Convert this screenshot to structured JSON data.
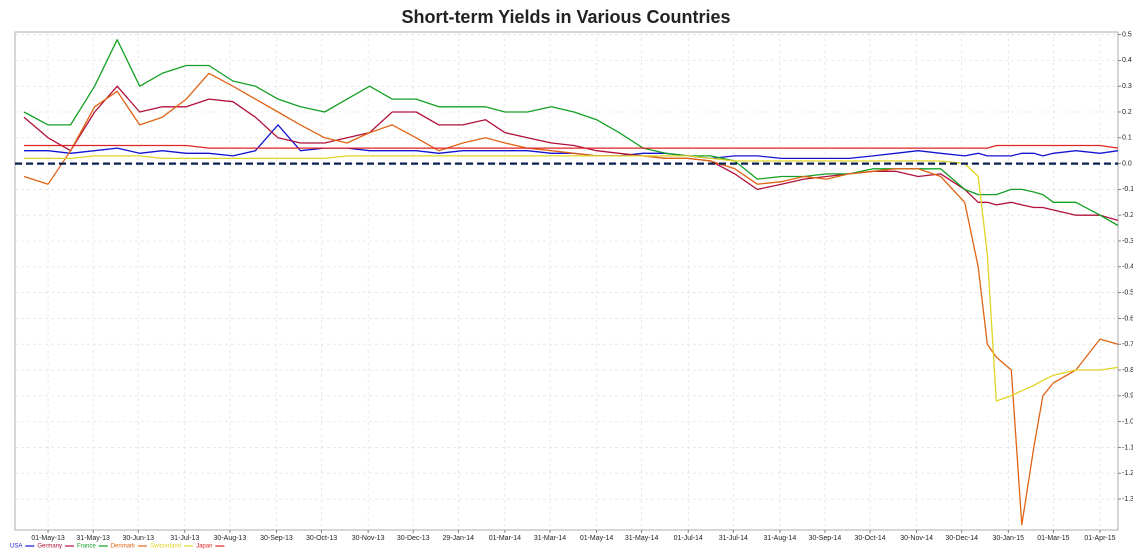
{
  "chart_data": {
    "type": "line",
    "title": "Short-term Yields in Various Countries",
    "x": [
      "2013-04-15",
      "2013-05-01",
      "2013-05-16",
      "2013-06-01",
      "2013-06-16",
      "2013-07-01",
      "2013-07-16",
      "2013-08-01",
      "2013-08-16",
      "2013-09-01",
      "2013-09-16",
      "2013-10-01",
      "2013-10-16",
      "2013-11-01",
      "2013-11-16",
      "2013-12-01",
      "2013-12-16",
      "2014-01-01",
      "2014-01-16",
      "2014-02-01",
      "2014-02-16",
      "2014-03-01",
      "2014-03-16",
      "2014-04-01",
      "2014-04-16",
      "2014-05-01",
      "2014-05-16",
      "2014-06-01",
      "2014-06-16",
      "2014-07-01",
      "2014-07-16",
      "2014-08-01",
      "2014-08-16",
      "2014-09-01",
      "2014-09-16",
      "2014-10-01",
      "2014-10-16",
      "2014-11-01",
      "2014-11-16",
      "2014-12-01",
      "2014-12-16",
      "2015-01-01",
      "2015-01-10",
      "2015-01-16",
      "2015-01-22",
      "2015-02-01",
      "2015-02-08",
      "2015-02-16",
      "2015-02-22",
      "2015-03-01",
      "2015-03-16",
      "2015-04-01",
      "2015-04-13"
    ],
    "xlim": [
      "2013-04-09",
      "2015-04-13"
    ],
    "xticks": [
      {
        "value": "2013-05-01",
        "label": "01-May-13"
      },
      {
        "value": "2013-05-31",
        "label": "31-May-13"
      },
      {
        "value": "2013-06-30",
        "label": "30-Jun-13"
      },
      {
        "value": "2013-07-31",
        "label": "31-Jul-13"
      },
      {
        "value": "2013-08-30",
        "label": "30-Aug-13"
      },
      {
        "value": "2013-09-30",
        "label": "30-Sep-13"
      },
      {
        "value": "2013-10-30",
        "label": "30-Oct-13"
      },
      {
        "value": "2013-11-30",
        "label": "30-Nov-13"
      },
      {
        "value": "2013-12-30",
        "label": "30-Dec-13"
      },
      {
        "value": "2014-01-29",
        "label": "29-Jan-14"
      },
      {
        "value": "2014-03-01",
        "label": "01-Mar-14"
      },
      {
        "value": "2014-03-31",
        "label": "31-Mar-14"
      },
      {
        "value": "2014-05-01",
        "label": "01-May-14"
      },
      {
        "value": "2014-05-31",
        "label": "31-May-14"
      },
      {
        "value": "2014-07-01",
        "label": "01-Jul-14"
      },
      {
        "value": "2014-07-31",
        "label": "31-Jul-14"
      },
      {
        "value": "2014-08-31",
        "label": "31-Aug-14"
      },
      {
        "value": "2014-09-30",
        "label": "30-Sep-14"
      },
      {
        "value": "2014-10-30",
        "label": "30-Oct-14"
      },
      {
        "value": "2014-11-30",
        "label": "30-Nov-14"
      },
      {
        "value": "2014-12-30",
        "label": "30-Dec-14"
      },
      {
        "value": "2015-01-30",
        "label": "30-Jan-15"
      },
      {
        "value": "2015-03-01",
        "label": "01-Mar-15"
      },
      {
        "value": "2015-04-01",
        "label": "01-Apr-15"
      }
    ],
    "ylim": [
      -1.42,
      0.51
    ],
    "yticks": [
      0.5,
      0.4,
      0.3,
      0.2,
      0.1,
      {
        "value": 0,
        "label": "0.0"
      },
      -0.1,
      -0.2,
      -0.3,
      -0.4,
      -0.5,
      -0.6,
      -0.7,
      -0.8,
      -0.9,
      {
        "value": -1,
        "label": "-1.0"
      },
      -1.1,
      -1.2,
      -1.3
    ],
    "grid": true,
    "reference_line": {
      "value": 0,
      "color": "#0a2050"
    },
    "series": [
      {
        "name": "USA",
        "color": "#1414d2",
        "values": [
          0.05,
          0.05,
          0.04,
          0.05,
          0.06,
          0.04,
          0.05,
          0.04,
          0.04,
          0.03,
          0.05,
          0.15,
          0.05,
          0.06,
          0.06,
          0.05,
          0.05,
          0.05,
          0.04,
          0.05,
          0.05,
          0.05,
          0.05,
          0.04,
          0.04,
          0.03,
          0.03,
          0.04,
          0.04,
          0.03,
          0.02,
          0.03,
          0.03,
          0.02,
          0.02,
          0.02,
          0.02,
          0.03,
          0.04,
          0.05,
          0.04,
          0.03,
          0.04,
          0.03,
          0.03,
          0.03,
          0.04,
          0.04,
          0.03,
          0.04,
          0.05,
          0.04,
          0.05
        ]
      },
      {
        "name": "Germany",
        "color": "#b0103a",
        "values": [
          0.18,
          0.1,
          0.05,
          0.2,
          0.3,
          0.2,
          0.22,
          0.22,
          0.25,
          0.24,
          0.18,
          0.1,
          0.08,
          0.08,
          0.1,
          0.12,
          0.2,
          0.2,
          0.15,
          0.15,
          0.17,
          0.12,
          0.1,
          0.08,
          0.07,
          0.05,
          0.04,
          0.03,
          0.02,
          0.02,
          0.01,
          -0.04,
          -0.1,
          -0.08,
          -0.06,
          -0.05,
          -0.04,
          -0.03,
          -0.03,
          -0.05,
          -0.04,
          -0.1,
          -0.15,
          -0.15,
          -0.16,
          -0.15,
          -0.16,
          -0.17,
          -0.17,
          -0.18,
          -0.2,
          -0.2,
          -0.22
        ]
      },
      {
        "name": "France",
        "color": "#14a024",
        "values": [
          0.2,
          0.15,
          0.15,
          0.3,
          0.48,
          0.3,
          0.35,
          0.38,
          0.38,
          0.32,
          0.3,
          0.25,
          0.22,
          0.2,
          0.25,
          0.3,
          0.25,
          0.25,
          0.22,
          0.22,
          0.22,
          0.2,
          0.2,
          0.22,
          0.2,
          0.17,
          0.12,
          0.06,
          0.04,
          0.03,
          0.03,
          0.01,
          -0.06,
          -0.05,
          -0.05,
          -0.04,
          -0.04,
          -0.02,
          -0.02,
          -0.02,
          -0.02,
          -0.1,
          -0.12,
          -0.12,
          -0.12,
          -0.1,
          -0.1,
          -0.11,
          -0.12,
          -0.15,
          -0.15,
          -0.2,
          -0.24
        ]
      },
      {
        "name": "Denmark",
        "color": "#e06414",
        "values": [
          -0.05,
          -0.08,
          0.05,
          0.22,
          0.28,
          0.15,
          0.18,
          0.25,
          0.35,
          0.3,
          0.25,
          0.2,
          0.15,
          0.1,
          0.08,
          0.12,
          0.15,
          0.1,
          0.05,
          0.08,
          0.1,
          0.08,
          0.06,
          0.05,
          0.04,
          0.03,
          0.03,
          0.03,
          0.02,
          0.02,
          0.01,
          -0.02,
          -0.08,
          -0.07,
          -0.05,
          -0.06,
          -0.04,
          -0.03,
          -0.02,
          -0.02,
          -0.05,
          -0.15,
          -0.4,
          -0.7,
          -0.75,
          -0.8,
          -1.4,
          -1.1,
          -0.9,
          -0.85,
          -0.8,
          -0.68,
          -0.7
        ]
      },
      {
        "name": "Switzerland",
        "color": "#e0d424",
        "values": [
          0.02,
          0.02,
          0.02,
          0.03,
          0.03,
          0.03,
          0.02,
          0.02,
          0.02,
          0.02,
          0.02,
          0.02,
          0.02,
          0.02,
          0.03,
          0.03,
          0.03,
          0.03,
          0.03,
          0.03,
          0.03,
          0.03,
          0.03,
          0.03,
          0.03,
          0.03,
          0.03,
          0.03,
          0.03,
          0.03,
          0.02,
          0.01,
          0.01,
          0.01,
          0.01,
          0.01,
          0.01,
          0.01,
          0.01,
          0.01,
          0.01,
          0,
          -0.05,
          -0.35,
          -0.92,
          -0.9,
          -0.88,
          -0.86,
          -0.84,
          -0.82,
          -0.8,
          -0.8,
          -0.79
        ]
      },
      {
        "name": "Japan",
        "color": "#e02424",
        "values": [
          0.07,
          0.07,
          0.07,
          0.07,
          0.07,
          0.07,
          0.07,
          0.07,
          0.06,
          0.06,
          0.06,
          0.06,
          0.06,
          0.06,
          0.06,
          0.06,
          0.06,
          0.06,
          0.06,
          0.06,
          0.06,
          0.06,
          0.06,
          0.06,
          0.06,
          0.06,
          0.06,
          0.06,
          0.06,
          0.06,
          0.06,
          0.06,
          0.06,
          0.06,
          0.06,
          0.06,
          0.06,
          0.06,
          0.06,
          0.06,
          0.06,
          0.06,
          0.06,
          0.06,
          0.07,
          0.07,
          0.07,
          0.07,
          0.07,
          0.07,
          0.07,
          0.07,
          0.06
        ]
      }
    ]
  }
}
